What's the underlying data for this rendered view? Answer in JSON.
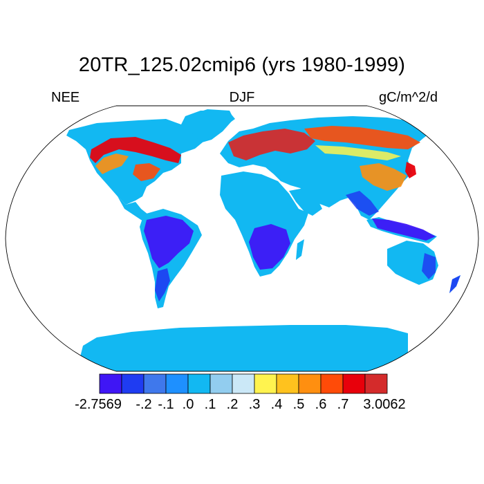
{
  "title": "20TR_125.02cmip6 (yrs 1980-1999)",
  "left_label": "NEE",
  "center_label": "DJF",
  "right_label": "gC/m^2/d",
  "colorbar": {
    "colors": [
      "#3f16f5",
      "#1f3cf2",
      "#3f78ec",
      "#1e90ff",
      "#12b8f2",
      "#92cdef",
      "#cbe8f7",
      "#fff34f",
      "#ffc21e",
      "#ff8f10",
      "#ff4b08",
      "#e8000b",
      "#d42b2b"
    ],
    "labels": [
      "-2.7569",
      "-.2",
      "-.1",
      ".0",
      ".1",
      ".2",
      ".3",
      ".4",
      ".5",
      ".6",
      ".7",
      "3.0062"
    ]
  },
  "map": {
    "projection": "robinson",
    "ocean_color": "#ffffff",
    "default_land_color": "#12b8f2"
  }
}
